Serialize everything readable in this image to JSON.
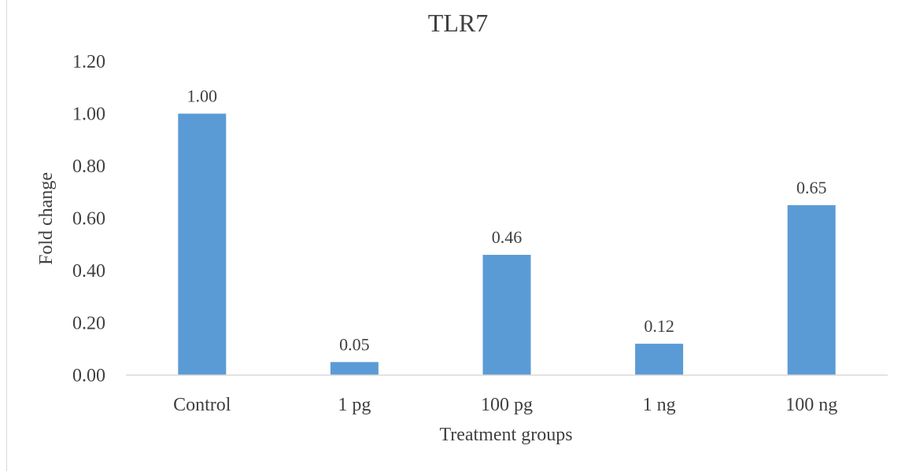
{
  "chart_data": {
    "type": "bar",
    "title": "TLR7",
    "xlabel": "Treatment groups",
    "ylabel": "Fold change",
    "categories": [
      "Control",
      "1 pg",
      "100 pg",
      "1 ng",
      "100 ng"
    ],
    "values": [
      1.0,
      0.05,
      0.46,
      0.12,
      0.65
    ],
    "value_labels": [
      "1.00",
      "0.05",
      "0.46",
      "0.12",
      "0.65"
    ],
    "yticks": [
      "0.00",
      "0.20",
      "0.40",
      "0.60",
      "0.80",
      "1.00",
      "1.20"
    ],
    "ylim": [
      0,
      1.2
    ],
    "grid": false,
    "legend": "none",
    "colors": {
      "bar": "#5b9bd5",
      "axis": "#d9d9d9",
      "text": "#404040"
    }
  }
}
